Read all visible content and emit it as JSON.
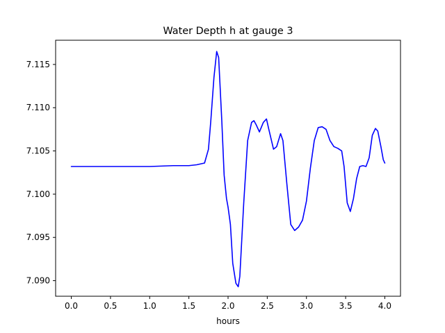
{
  "chart_data": {
    "type": "line",
    "title": "Water Depth h at gauge 3",
    "xlabel": "hours",
    "ylabel": "",
    "xlim": [
      -0.2,
      4.2
    ],
    "ylim": [
      7.0882,
      7.1178
    ],
    "xticks": [
      0.0,
      0.5,
      1.0,
      1.5,
      2.0,
      2.5,
      3.0,
      3.5,
      4.0
    ],
    "xtick_labels": [
      "0.0",
      "0.5",
      "1.0",
      "1.5",
      "2.0",
      "2.5",
      "3.0",
      "3.5",
      "4.0"
    ],
    "yticks": [
      7.09,
      7.095,
      7.1,
      7.105,
      7.11,
      7.115
    ],
    "ytick_labels": [
      "7.090",
      "7.095",
      "7.100",
      "7.105",
      "7.110",
      "7.115"
    ],
    "grid": false,
    "legend": "none",
    "color": "#0000ff",
    "series": [
      {
        "x": [
          0.0,
          0.5,
          1.0,
          1.3,
          1.5,
          1.6,
          1.7,
          1.75,
          1.78,
          1.82,
          1.855,
          1.88,
          1.92,
          1.95,
          1.98,
          2.0,
          2.03,
          2.06,
          2.1,
          2.13,
          2.15,
          2.2,
          2.25,
          2.3,
          2.33,
          2.36,
          2.4,
          2.45,
          2.49,
          2.52,
          2.58,
          2.62,
          2.67,
          2.7,
          2.75,
          2.8,
          2.85,
          2.9,
          2.95,
          3.0,
          3.05,
          3.1,
          3.15,
          3.2,
          3.25,
          3.3,
          3.35,
          3.4,
          3.45,
          3.48,
          3.52,
          3.56,
          3.6,
          3.64,
          3.68,
          3.72,
          3.76,
          3.8,
          3.84,
          3.88,
          3.91,
          3.95,
          3.98,
          4.0
        ],
        "y": [
          7.1032,
          7.1032,
          7.1032,
          7.1033,
          7.1033,
          7.1034,
          7.1036,
          7.1052,
          7.1085,
          7.1135,
          7.1165,
          7.1158,
          7.1085,
          7.1022,
          7.0995,
          7.0985,
          7.0965,
          7.092,
          7.0897,
          7.0893,
          7.0905,
          7.099,
          7.1062,
          7.1083,
          7.1085,
          7.108,
          7.1072,
          7.1083,
          7.1087,
          7.1075,
          7.1052,
          7.1055,
          7.107,
          7.1062,
          7.1012,
          7.0965,
          7.0958,
          7.0962,
          7.097,
          7.0992,
          7.103,
          7.1062,
          7.1077,
          7.1078,
          7.1075,
          7.1062,
          7.1055,
          7.1053,
          7.105,
          7.1032,
          7.099,
          7.098,
          7.0995,
          7.1018,
          7.1032,
          7.1033,
          7.1032,
          7.1042,
          7.1068,
          7.1076,
          7.1073,
          7.1055,
          7.104,
          7.1036
        ]
      }
    ]
  }
}
